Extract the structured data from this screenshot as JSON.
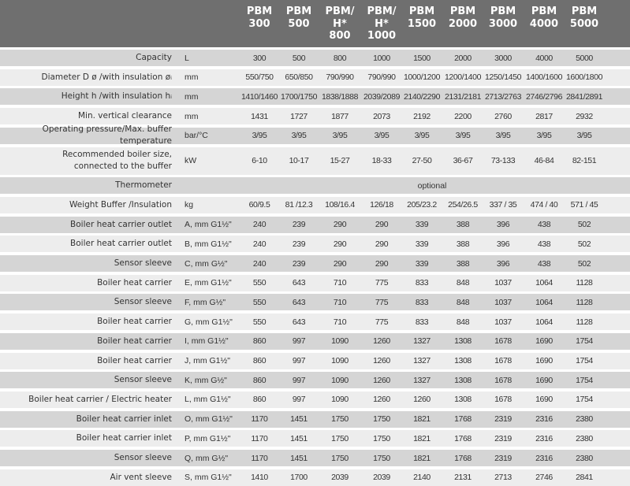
{
  "columns": [
    [
      "PBM",
      "300"
    ],
    [
      "PBM",
      "500"
    ],
    [
      "PBM/",
      "H*",
      "800"
    ],
    [
      "PBM/",
      "H*",
      "1000"
    ],
    [
      "PBM",
      "1500"
    ],
    [
      "PBM",
      "2000"
    ],
    [
      "PBM",
      "3000"
    ],
    [
      "PBM",
      "4000"
    ],
    [
      "PBM",
      "5000"
    ]
  ],
  "rows": [
    {
      "label": "Capacity",
      "unit": "L",
      "values": [
        "300",
        "500",
        "800",
        "1000",
        "1500",
        "2000",
        "3000",
        "4000",
        "5000"
      ]
    },
    {
      "label": "Diameter D ø /with insulation øᵢ",
      "unit": "mm",
      "values": [
        "550/750",
        "650/850",
        "790/990",
        "790/990",
        "1000/1200",
        "1200/1400",
        "1250/1450",
        "1400/1600",
        "1600/1800"
      ]
    },
    {
      "label": "Height h /with insulation hᵢ",
      "unit": "mm",
      "values": [
        "1410/1460",
        "1700/1750",
        "1838/1888",
        "2039/2089",
        "2140/2290",
        "2131/2181",
        "2713/2763",
        "2746/2796",
        "2841/2891"
      ]
    },
    {
      "label": "Min. vertical clearance",
      "unit": "mm",
      "values": [
        "1431",
        "1727",
        "1877",
        "2073",
        "2192",
        "2200",
        "2760",
        "2817",
        "2932"
      ]
    },
    {
      "label": "Operating pressure/Max. buffer temperature",
      "unit": "bar/°C",
      "values": [
        "3/95",
        "3/95",
        "3/95",
        "3/95",
        "3/95",
        "3/95",
        "3/95",
        "3/95",
        "3/95"
      ]
    },
    {
      "label": "Recommended boiler size,\nconnected to the buffer",
      "unit": "kW",
      "values": [
        "6-10",
        "10-17",
        "15-27",
        "18-33",
        "27-50",
        "36-67",
        "73-133",
        "46-84",
        "82-151"
      ],
      "tall": true
    },
    {
      "label": "Thermometer",
      "unit": "",
      "span": "optional"
    },
    {
      "label": "Weight Buffer /Insulation",
      "unit": "kg",
      "values": [
        "60/9.5",
        "81 /12.3",
        "108/16.4",
        "126/18",
        "205/23.2",
        "254/26.5",
        "337 / 35",
        "474 / 40",
        "571 / 45"
      ]
    },
    {
      "label": "Boiler heat carrier outlet",
      "unit": "A, mm  G1½\"",
      "values": [
        "240",
        "239",
        "290",
        "290",
        "339",
        "388",
        "396",
        "438",
        "502"
      ]
    },
    {
      "label": "Boiler heat carrier outlet",
      "unit": "B, mm  G1½\"",
      "values": [
        "240",
        "239",
        "290",
        "290",
        "339",
        "388",
        "396",
        "438",
        "502"
      ]
    },
    {
      "label": "Sensor sleeve",
      "unit": "C, mm  G½\"",
      "values": [
        "240",
        "239",
        "290",
        "290",
        "339",
        "388",
        "396",
        "438",
        "502"
      ]
    },
    {
      "label": "Boiler heat carrier",
      "unit": "E, mm  G1½\"",
      "values": [
        "550",
        "643",
        "710",
        "775",
        "833",
        "848",
        "1037",
        "1064",
        "1128"
      ]
    },
    {
      "label": "Sensor sleeve",
      "unit": "F, mm  G½\"",
      "values": [
        "550",
        "643",
        "710",
        "775",
        "833",
        "848",
        "1037",
        "1064",
        "1128"
      ]
    },
    {
      "label": "Boiler heat carrier",
      "unit": "G, mm G1½\"",
      "values": [
        "550",
        "643",
        "710",
        "775",
        "833",
        "848",
        "1037",
        "1064",
        "1128"
      ]
    },
    {
      "label": "Boiler heat carrier",
      "unit": "I, mm  G1½\"",
      "values": [
        "860",
        "997",
        "1090",
        "1260",
        "1327",
        "1308",
        "1678",
        "1690",
        "1754"
      ]
    },
    {
      "label": "Boiler heat carrier",
      "unit": "J, mm  G1½\"",
      "values": [
        "860",
        "997",
        "1090",
        "1260",
        "1327",
        "1308",
        "1678",
        "1690",
        "1754"
      ]
    },
    {
      "label": "Sensor sleeve",
      "unit": "K, mm  G½\"",
      "values": [
        "860",
        "997",
        "1090",
        "1260",
        "1327",
        "1308",
        "1678",
        "1690",
        "1754"
      ]
    },
    {
      "label": "Boiler heat carrier / Electric heater",
      "unit": "L, mm  G1½\"",
      "values": [
        "860",
        "997",
        "1090",
        "1260",
        "1260",
        "1308",
        "1678",
        "1690",
        "1754"
      ]
    },
    {
      "label": "Boiler heat carrier inlet",
      "unit": "O, mm G1½\"",
      "values": [
        "1170",
        "1451",
        "1750",
        "1750",
        "1821",
        "1768",
        "2319",
        "2316",
        "2380"
      ]
    },
    {
      "label": "Boiler heat carrier inlet",
      "unit": "P, mm G1½\"",
      "values": [
        "1170",
        "1451",
        "1750",
        "1750",
        "1821",
        "1768",
        "2319",
        "2316",
        "2380"
      ]
    },
    {
      "label": "Sensor sleeve",
      "unit": "Q, mm G½\"",
      "values": [
        "1170",
        "1451",
        "1750",
        "1750",
        "1821",
        "1768",
        "2319",
        "2316",
        "2380"
      ]
    },
    {
      "label": "Air vent sleeve",
      "unit": "S, mm  G1½\"",
      "values": [
        "1410",
        "1700",
        "2039",
        "2039",
        "2140",
        "2131",
        "2713",
        "2746",
        "2841"
      ]
    }
  ]
}
